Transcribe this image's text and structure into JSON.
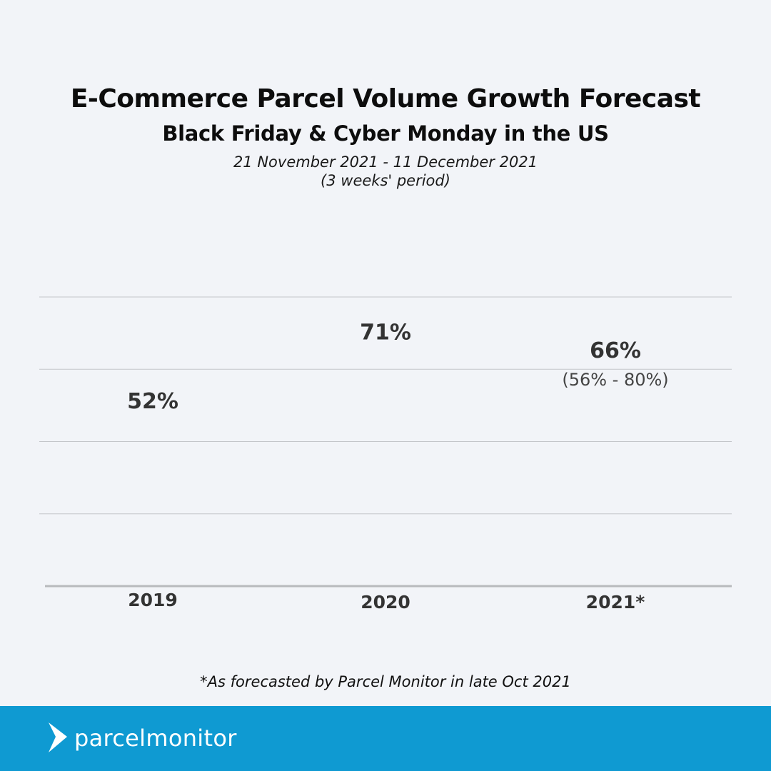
{
  "header": {
    "title": "E-Commerce Parcel Volume Growth Forecast",
    "subtitle": "Black Friday & Cyber Monday in the US",
    "date_range": "21 November 2021 - 11 December 2021",
    "period": "(3 weeks' period)"
  },
  "chart_data": {
    "type": "line",
    "categories": [
      "2019",
      "2020",
      "2021*"
    ],
    "values": [
      52,
      71,
      66
    ],
    "value_labels": [
      "52%",
      "71%",
      "66%"
    ],
    "range_label": "(56% - 80%)",
    "ylim": [
      0,
      80
    ],
    "grid": true,
    "colors": {
      "gridline": "#c4c6ca",
      "baseline": "#b8babd",
      "value_text": "#333333",
      "tick_text": "#333333",
      "range_text": "#444444"
    }
  },
  "footnote": "*As forecasted by Parcel Monitor in late Oct 2021",
  "footer": {
    "brand": "parcelmonitor",
    "background": "#0f9ad2"
  }
}
